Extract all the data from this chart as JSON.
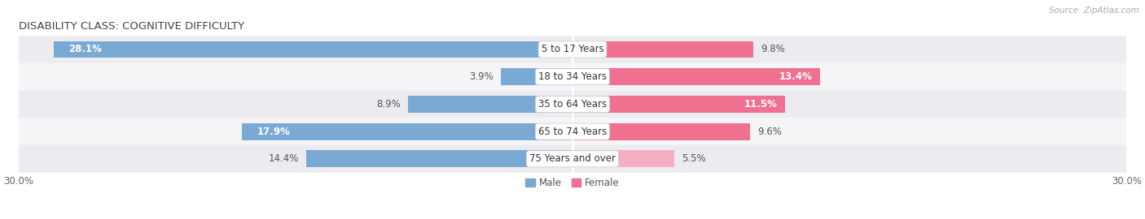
{
  "title": "DISABILITY CLASS: COGNITIVE DIFFICULTY",
  "source": "Source: ZipAtlas.com",
  "categories": [
    "5 to 17 Years",
    "18 to 34 Years",
    "35 to 64 Years",
    "65 to 74 Years",
    "75 Years and over"
  ],
  "male_values": [
    28.1,
    3.9,
    8.9,
    17.9,
    14.4
  ],
  "female_values": [
    9.8,
    13.4,
    11.5,
    9.6,
    5.5
  ],
  "male_color": "#7aaad4",
  "female_color": "#f07090",
  "female_color_light": "#f5afc5",
  "bar_bg_odd": "#ebebf0",
  "bar_bg_even": "#f5f5f8",
  "axis_max": 30.0,
  "legend_male": "Male",
  "legend_female": "Female",
  "title_fontsize": 9.5,
  "label_fontsize": 8.5,
  "value_fontsize": 8.5,
  "tick_fontsize": 8.5
}
